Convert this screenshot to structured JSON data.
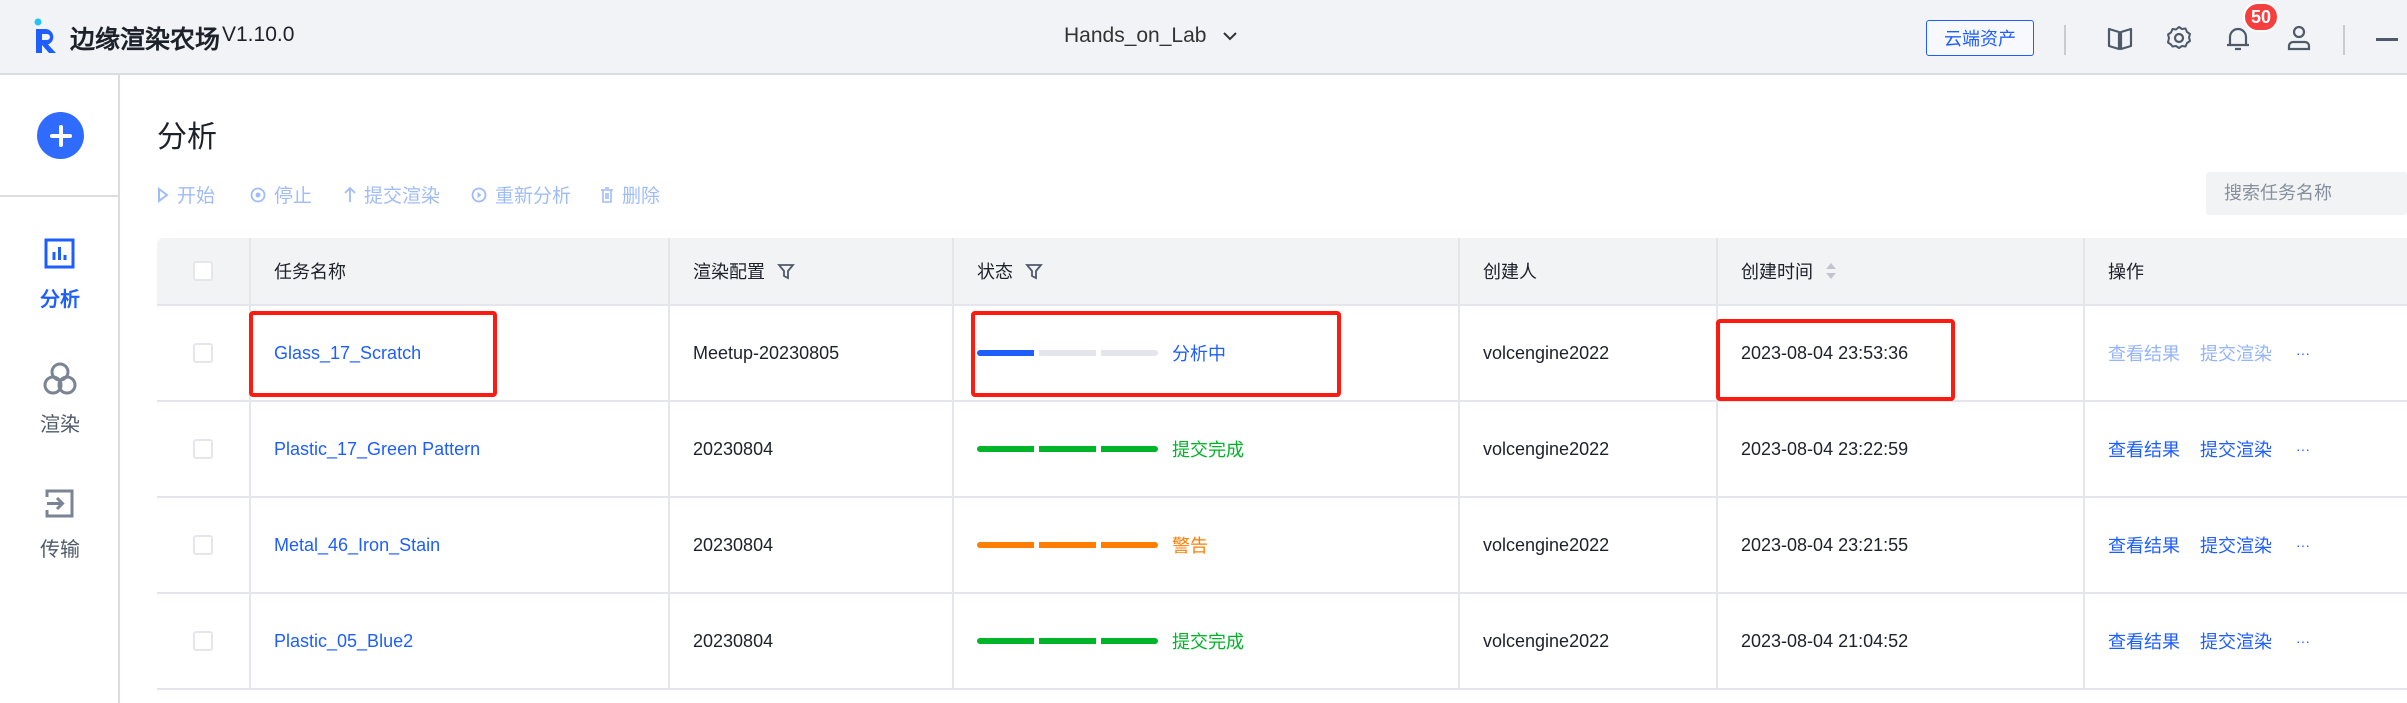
{
  "header": {
    "brand": "边缘渲染农场",
    "version": "V1.10.0",
    "project": "Hands_on_Lab",
    "cloud_assets": "云端资产",
    "notification_count": "50"
  },
  "sidebar": {
    "items": [
      {
        "label": "分析",
        "icon": "bar-chart-icon",
        "active": true
      },
      {
        "label": "渲染",
        "icon": "circles-icon"
      },
      {
        "label": "传输",
        "icon": "import-icon"
      }
    ]
  },
  "page": {
    "title": "分析"
  },
  "toolbar": {
    "start": "开始",
    "stop": "停止",
    "submit": "提交渲染",
    "reanalyze": "重新分析",
    "delete": "删除"
  },
  "search": {
    "placeholder": "搜索任务名称"
  },
  "table": {
    "columns": [
      "任务名称",
      "渲染配置",
      "状态",
      "创建人",
      "创建时间",
      "操作"
    ],
    "rows": [
      {
        "name": "Glass_17_Scratch",
        "config": "Meetup-20230805",
        "status": "分析中",
        "progress": 1,
        "status_color": "#1e5eff",
        "creator": "volcengine2022",
        "time": "2023-08-04 23:53:36",
        "view": "查看结果",
        "submit": "提交渲染",
        "more": "···",
        "disabled": true
      },
      {
        "name": "Plastic_17_Green Pattern",
        "config": "20230804",
        "status": "提交完成",
        "progress": 3,
        "status_color": "#00b42a",
        "creator": "volcengine2022",
        "time": "2023-08-04 23:22:59",
        "view": "查看结果",
        "submit": "提交渲染",
        "more": "···"
      },
      {
        "name": "Metal_46_Iron_Stain",
        "config": "20230804",
        "status": "警告",
        "progress": 3,
        "status_color": "#ff7d00",
        "creator": "volcengine2022",
        "time": "2023-08-04 23:21:55",
        "view": "查看结果",
        "submit": "提交渲染",
        "more": "···"
      },
      {
        "name": "Plastic_05_Blue2",
        "config": "20230804",
        "status": "提交完成",
        "progress": 3,
        "status_color": "#00b42a",
        "creator": "volcengine2022",
        "time": "2023-08-04 21:04:52",
        "view": "查看结果",
        "submit": "提交渲染",
        "more": "···"
      }
    ]
  },
  "colors": {
    "accent": "#1e5eff",
    "highlight": "#ff1a10"
  }
}
